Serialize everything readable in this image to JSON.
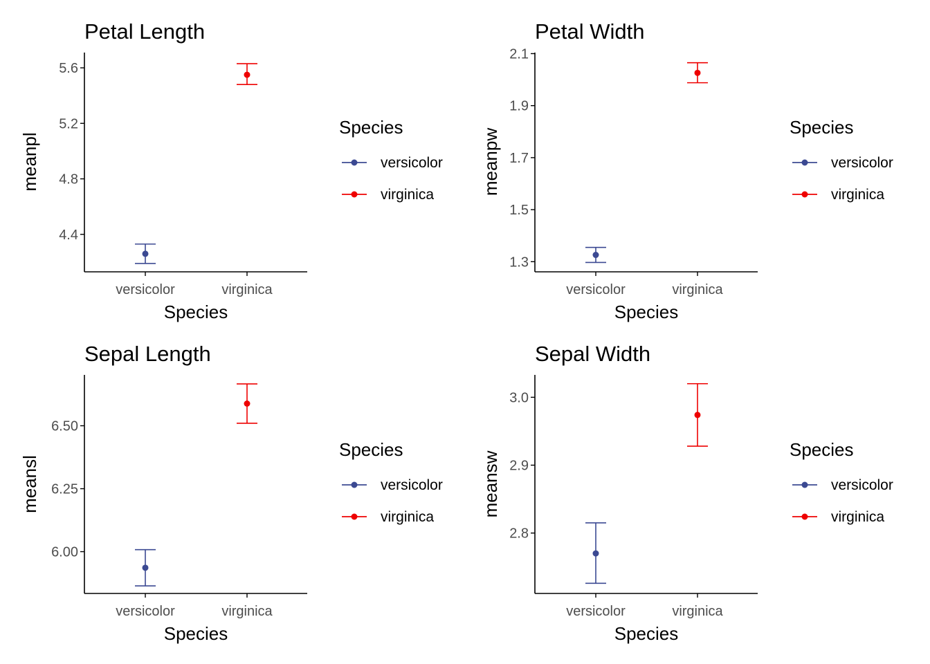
{
  "legend": {
    "title": "Species",
    "entries": [
      "versicolor",
      "virginica"
    ]
  },
  "colors": {
    "versicolor": "#3B4992",
    "virginica": "#EE0000",
    "axis": "#000000",
    "tick_text": "#4d4d4d"
  },
  "chart_data": [
    {
      "type": "scatter",
      "title": "Petal Length",
      "xlabel": "Species",
      "ylabel": "meanpl",
      "categories": [
        "versicolor",
        "virginica"
      ],
      "y_ticks": [
        "4.4",
        "4.8",
        "5.2",
        "5.6"
      ],
      "ylim": [
        4.13,
        5.71
      ],
      "series": [
        {
          "name": "versicolor",
          "mean": 4.26,
          "lower": 4.19,
          "upper": 4.33
        },
        {
          "name": "virginica",
          "mean": 5.55,
          "lower": 5.48,
          "upper": 5.63
        }
      ],
      "grid": false,
      "legend_position": "right"
    },
    {
      "type": "scatter",
      "title": "Petal Width",
      "xlabel": "Species",
      "ylabel": "meanpw",
      "categories": [
        "versicolor",
        "virginica"
      ],
      "y_ticks": [
        "1.3",
        "1.5",
        "1.7",
        "1.9",
        "2.1"
      ],
      "ylim": [
        1.261,
        2.104
      ],
      "series": [
        {
          "name": "versicolor",
          "mean": 1.326,
          "lower": 1.297,
          "upper": 1.355
        },
        {
          "name": "virginica",
          "mean": 2.026,
          "lower": 1.988,
          "upper": 2.065
        }
      ],
      "grid": false,
      "legend_position": "right"
    },
    {
      "type": "scatter",
      "title": "Sepal Length",
      "xlabel": "Species",
      "ylabel": "meansl",
      "categories": [
        "versicolor",
        "virginica"
      ],
      "y_ticks": [
        "6.00",
        "6.25",
        "6.50"
      ],
      "ylim": [
        5.834,
        6.702
      ],
      "series": [
        {
          "name": "versicolor",
          "mean": 5.936,
          "lower": 5.864,
          "upper": 6.008
        },
        {
          "name": "virginica",
          "mean": 6.588,
          "lower": 6.51,
          "upper": 6.666
        }
      ],
      "grid": false,
      "legend_position": "right"
    },
    {
      "type": "scatter",
      "title": "Sepal Width",
      "xlabel": "Species",
      "ylabel": "meansw",
      "categories": [
        "versicolor",
        "virginica"
      ],
      "y_ticks": [
        "2.8",
        "2.9",
        "3.0"
      ],
      "ylim": [
        2.711,
        3.033
      ],
      "series": [
        {
          "name": "versicolor",
          "mean": 2.77,
          "lower": 2.726,
          "upper": 2.815
        },
        {
          "name": "virginica",
          "mean": 2.974,
          "lower": 2.928,
          "upper": 3.02
        }
      ],
      "grid": false,
      "legend_position": "right"
    }
  ]
}
